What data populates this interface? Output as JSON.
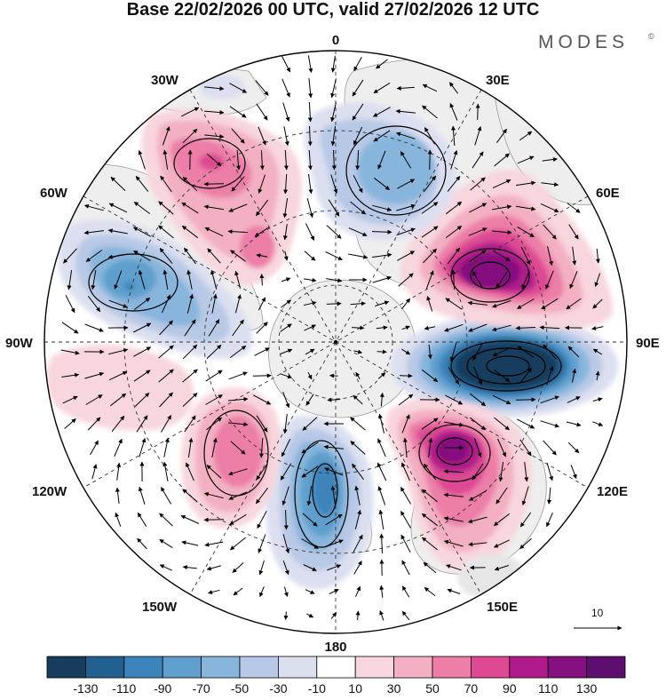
{
  "title": "Base 22/02/2026 00 UTC, valid 27/02/2026 12 UTC",
  "brand": "MODES",
  "brand_mark": "©",
  "longitude_labels": {
    "top": "0",
    "bottom": "180",
    "left": "90W",
    "right": "90E",
    "upper_left_30": "30W",
    "upper_left_60": "60W",
    "upper_right_30": "30E",
    "upper_right_60": "60E",
    "lower_left_120": "120W",
    "lower_left_150": "150W",
    "lower_right_120": "120E",
    "lower_right_150": "150E"
  },
  "reference_vector": {
    "label": "10"
  },
  "colorbar": {
    "labels": [
      "-130",
      "-110",
      "-90",
      "-70",
      "-50",
      "-30",
      "-10",
      "10",
      "30",
      "50",
      "70",
      "90",
      "110",
      "130"
    ],
    "colors": [
      "#173c5d",
      "#22618f",
      "#3c84bb",
      "#5f9fcd",
      "#88b5dc",
      "#b7c9e6",
      "#dcdff0",
      "#ffffff",
      "#f8d6dd",
      "#f3b0c3",
      "#ec7ea7",
      "#dd4a93",
      "#b01a8a",
      "#86107f",
      "#5e0e6e"
    ]
  },
  "map": {
    "anomalies": [
      {
        "name": "low-60e",
        "value": 110
      },
      {
        "name": "high-90e",
        "value": -130
      },
      {
        "name": "low-125e",
        "value": 110
      },
      {
        "name": "high-170w",
        "value": -90
      },
      {
        "name": "low-120w",
        "value": 70
      },
      {
        "name": "high-70w",
        "value": -70
      },
      {
        "name": "low-30w",
        "value": 90
      },
      {
        "name": "high-10e",
        "value": -50
      }
    ]
  }
}
